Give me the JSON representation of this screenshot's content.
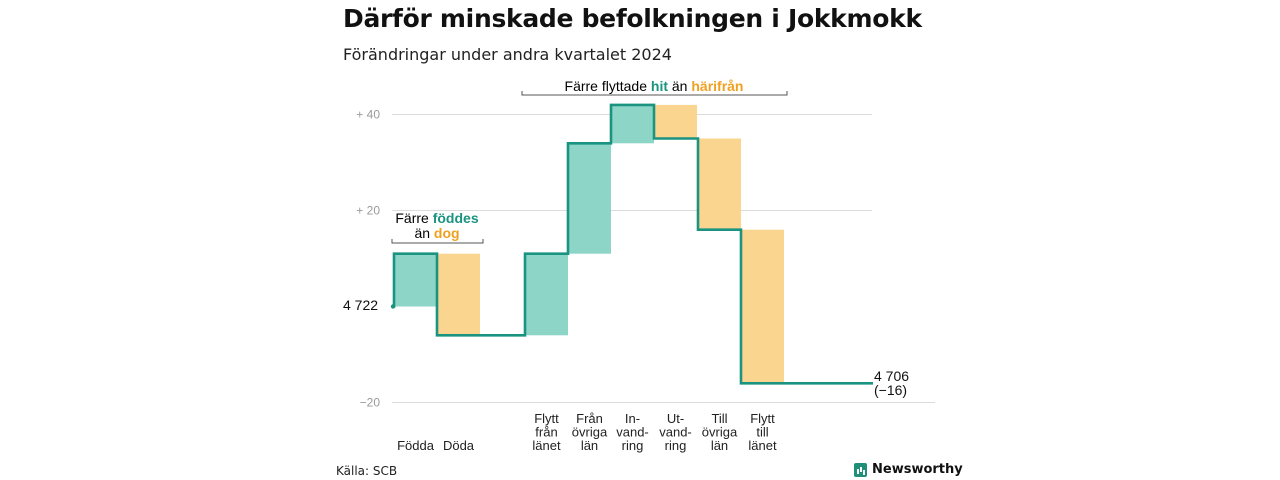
{
  "title": "Därför minskade befolkningen i Jokkmokk",
  "subtitle": "Förändringar under andra kvartalet 2024",
  "source": "Källa: SCB",
  "brand": "Newsworthy",
  "colors": {
    "positive": "#8dd6c7",
    "negative": "#fad58f",
    "line": "#1a9480",
    "positive_text": "#1a9480",
    "negative_text": "#f0a020"
  },
  "annotations": {
    "birth": {
      "line1_a": "Färre ",
      "line1_b": "föddes",
      "line2_a": "än ",
      "line2_b": "dog"
    },
    "migration": {
      "a": "Färre flyttade ",
      "b": "hit",
      "c": " än ",
      "d": "härifrån"
    }
  },
  "chart_data": {
    "type": "waterfall",
    "start_label": "4 722",
    "end_label_1": "4 706",
    "end_label_2": "(−16)",
    "ylim": [
      -20,
      45
    ],
    "yticks": [
      {
        "value": 40,
        "label": "+  40"
      },
      {
        "value": 20,
        "label": "+  20"
      },
      {
        "value": -20,
        "label": "−20"
      }
    ],
    "categories": [
      {
        "label": [
          "Födda"
        ],
        "delta": 11
      },
      {
        "label": [
          "Döda"
        ],
        "delta": -17
      },
      {
        "label": [
          "Flytt",
          "från",
          "länet"
        ],
        "delta": 17
      },
      {
        "label": [
          "Från",
          "övriga",
          "län"
        ],
        "delta": 23
      },
      {
        "label": [
          "In-",
          "vand-",
          "ring"
        ],
        "delta": 8
      },
      {
        "label": [
          "Ut-",
          "vand-",
          "ring"
        ],
        "delta": -7
      },
      {
        "label": [
          "Till",
          "övriga",
          "län"
        ],
        "delta": -19
      },
      {
        "label": [
          "Flytt",
          "till",
          "länet"
        ],
        "delta": -32
      }
    ],
    "running_values": [
      0,
      11,
      -6,
      11,
      34,
      42,
      35,
      16,
      -16
    ]
  }
}
